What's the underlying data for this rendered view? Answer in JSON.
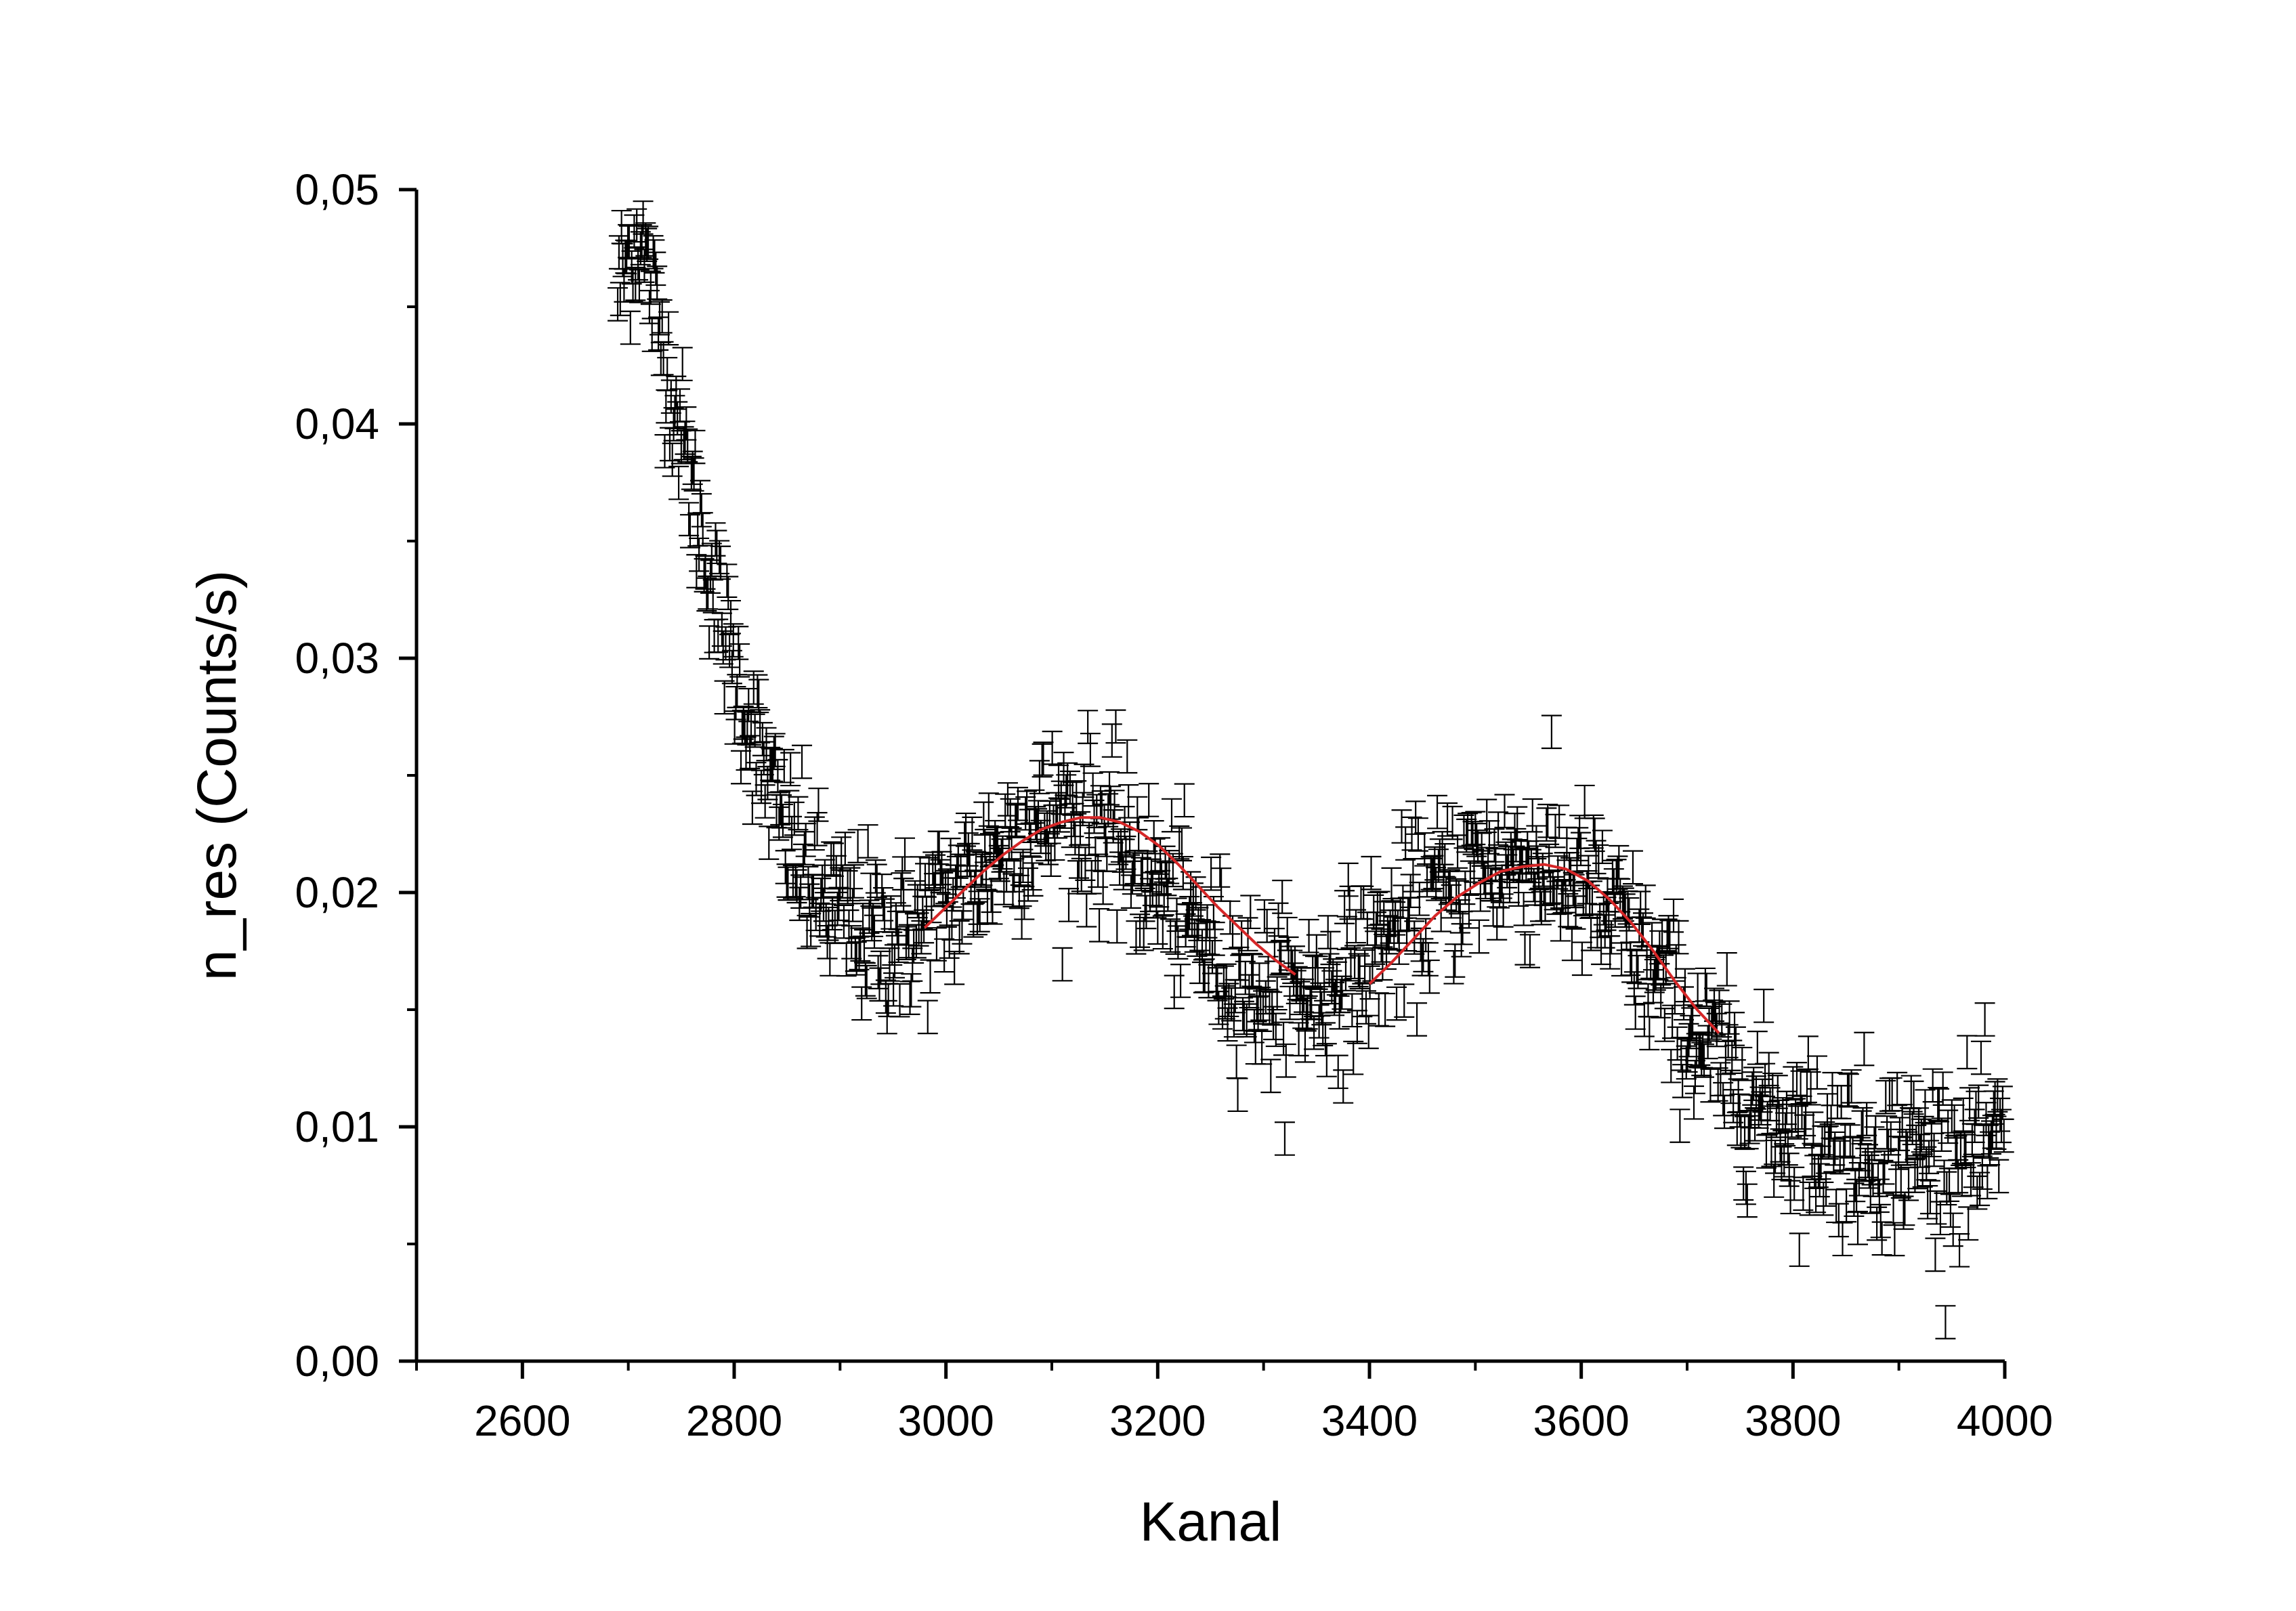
{
  "chart_data": {
    "type": "scatter",
    "title": "",
    "xlabel": "Kanal",
    "ylabel": "n_res (Counts/s)",
    "xlim": [
      2500,
      4000
    ],
    "ylim": [
      0.0,
      0.05
    ],
    "x_ticks": [
      2600,
      2800,
      3000,
      3200,
      3400,
      3600,
      3800,
      4000
    ],
    "x_tick_labels": [
      "2600",
      "2800",
      "3000",
      "3200",
      "3400",
      "3600",
      "3800",
      "4000"
    ],
    "y_ticks": [
      0.0,
      0.01,
      0.02,
      0.03,
      0.04,
      0.05
    ],
    "y_tick_labels": [
      "0,00",
      "0,01",
      "0,02",
      "0,03",
      "0,04",
      "0,05"
    ],
    "grid": false,
    "legend": "none",
    "series": [
      {
        "kind": "data-with-error-bars",
        "color": "#000000",
        "x_range": [
          2690,
          4000
        ],
        "points": [
          [
            2690,
            0.0456
          ],
          [
            2700,
            0.0472
          ],
          [
            2710,
            0.0482
          ],
          [
            2720,
            0.0461
          ],
          [
            2730,
            0.044
          ],
          [
            2740,
            0.0418
          ],
          [
            2750,
            0.0396
          ],
          [
            2760,
            0.0372
          ],
          [
            2770,
            0.0352
          ],
          [
            2780,
            0.0331
          ],
          [
            2790,
            0.0312
          ],
          [
            2800,
            0.0296
          ],
          [
            2810,
            0.028
          ],
          [
            2820,
            0.0265
          ],
          [
            2830,
            0.0249
          ],
          [
            2840,
            0.0236
          ],
          [
            2850,
            0.0224
          ],
          [
            2860,
            0.0214
          ],
          [
            2870,
            0.0206
          ],
          [
            2880,
            0.0199
          ],
          [
            2890,
            0.0194
          ],
          [
            2900,
            0.019
          ],
          [
            2910,
            0.0187
          ],
          [
            2920,
            0.0184
          ],
          [
            2930,
            0.0182
          ],
          [
            2940,
            0.0181
          ],
          [
            2950,
            0.0181
          ],
          [
            2960,
            0.0182
          ],
          [
            2970,
            0.0184
          ],
          [
            2980,
            0.0187
          ],
          [
            2990,
            0.0191
          ],
          [
            3000,
            0.0195
          ],
          [
            3010,
            0.0199
          ],
          [
            3020,
            0.0204
          ],
          [
            3030,
            0.0209
          ],
          [
            3040,
            0.0214
          ],
          [
            3050,
            0.0218
          ],
          [
            3060,
            0.0222
          ],
          [
            3070,
            0.0226
          ],
          [
            3080,
            0.0228
          ],
          [
            3090,
            0.023
          ],
          [
            3100,
            0.0231
          ],
          [
            3110,
            0.0232
          ],
          [
            3120,
            0.0232
          ],
          [
            3130,
            0.0231
          ],
          [
            3140,
            0.0229
          ],
          [
            3150,
            0.0226
          ],
          [
            3160,
            0.0222
          ],
          [
            3170,
            0.0218
          ],
          [
            3180,
            0.0213
          ],
          [
            3190,
            0.0208
          ],
          [
            3200,
            0.0202
          ],
          [
            3210,
            0.0197
          ],
          [
            3220,
            0.0192
          ],
          [
            3230,
            0.0187
          ],
          [
            3240,
            0.0182
          ],
          [
            3250,
            0.0177
          ],
          [
            3260,
            0.0172
          ],
          [
            3270,
            0.0168
          ],
          [
            3280,
            0.0164
          ],
          [
            3290,
            0.0161
          ],
          [
            3300,
            0.0159
          ],
          [
            3310,
            0.0157
          ],
          [
            3320,
            0.0156
          ],
          [
            3330,
            0.0156
          ],
          [
            3340,
            0.0157
          ],
          [
            3350,
            0.0158
          ],
          [
            3360,
            0.016
          ],
          [
            3370,
            0.0163
          ],
          [
            3380,
            0.0166
          ],
          [
            3390,
            0.0169
          ],
          [
            3400,
            0.0173
          ],
          [
            3410,
            0.0177
          ],
          [
            3420,
            0.0181
          ],
          [
            3430,
            0.0186
          ],
          [
            3440,
            0.019
          ],
          [
            3450,
            0.0194
          ],
          [
            3460,
            0.0198
          ],
          [
            3470,
            0.0201
          ],
          [
            3480,
            0.0204
          ],
          [
            3490,
            0.0207
          ],
          [
            3500,
            0.0209
          ],
          [
            3510,
            0.0211
          ],
          [
            3520,
            0.0212
          ],
          [
            3530,
            0.0213
          ],
          [
            3540,
            0.0213
          ],
          [
            3550,
            0.0213
          ],
          [
            3560,
            0.0212
          ],
          [
            3570,
            0.021
          ],
          [
            3580,
            0.0208
          ],
          [
            3590,
            0.0205
          ],
          [
            3600,
            0.0202
          ],
          [
            3610,
            0.0198
          ],
          [
            3620,
            0.0193
          ],
          [
            3630,
            0.0188
          ],
          [
            3640,
            0.0182
          ],
          [
            3650,
            0.0176
          ],
          [
            3660,
            0.017
          ],
          [
            3670,
            0.0163
          ],
          [
            3680,
            0.0157
          ],
          [
            3690,
            0.015
          ],
          [
            3700,
            0.0144
          ],
          [
            3710,
            0.0138
          ],
          [
            3720,
            0.0132
          ],
          [
            3730,
            0.0127
          ],
          [
            3740,
            0.0122
          ],
          [
            3750,
            0.0117
          ],
          [
            3760,
            0.0113
          ],
          [
            3770,
            0.0109
          ],
          [
            3780,
            0.0106
          ],
          [
            3790,
            0.0103
          ],
          [
            3800,
            0.01
          ],
          [
            3810,
            0.0098
          ],
          [
            3820,
            0.0096
          ],
          [
            3830,
            0.0094
          ],
          [
            3840,
            0.0093
          ],
          [
            3850,
            0.0092
          ],
          [
            3860,
            0.0091
          ],
          [
            3870,
            0.009
          ],
          [
            3880,
            0.009
          ],
          [
            3890,
            0.0089
          ],
          [
            3900,
            0.0089
          ],
          [
            3910,
            0.0089
          ],
          [
            3920,
            0.0089
          ],
          [
            3930,
            0.0089
          ],
          [
            3940,
            0.0089
          ],
          [
            3950,
            0.0089
          ],
          [
            3960,
            0.0089
          ],
          [
            3970,
            0.0089
          ],
          [
            3980,
            0.0089
          ],
          [
            3990,
            0.0089
          ],
          [
            4000,
            0.0089
          ]
        ],
        "error": 0.0007
      },
      {
        "kind": "fit",
        "color": "#d62728",
        "segment_1_x": [
          2980,
          3330
        ],
        "segment_1_y": [
          0.0185,
          0.0193,
          0.0201,
          0.0209,
          0.0216,
          0.0222,
          0.0227,
          0.023,
          0.0232,
          0.0232,
          0.023,
          0.0226,
          0.022,
          0.0212,
          0.0203,
          0.0194,
          0.0186,
          0.0178,
          0.0171,
          0.0165
        ],
        "segment_2_x": [
          3400,
          3730
        ],
        "segment_2_y": [
          0.0161,
          0.017,
          0.018,
          0.019,
          0.0198,
          0.0204,
          0.0209,
          0.0211,
          0.0212,
          0.021,
          0.0205,
          0.0197,
          0.0187,
          0.0175,
          0.0162,
          0.015,
          0.014
        ]
      }
    ]
  }
}
